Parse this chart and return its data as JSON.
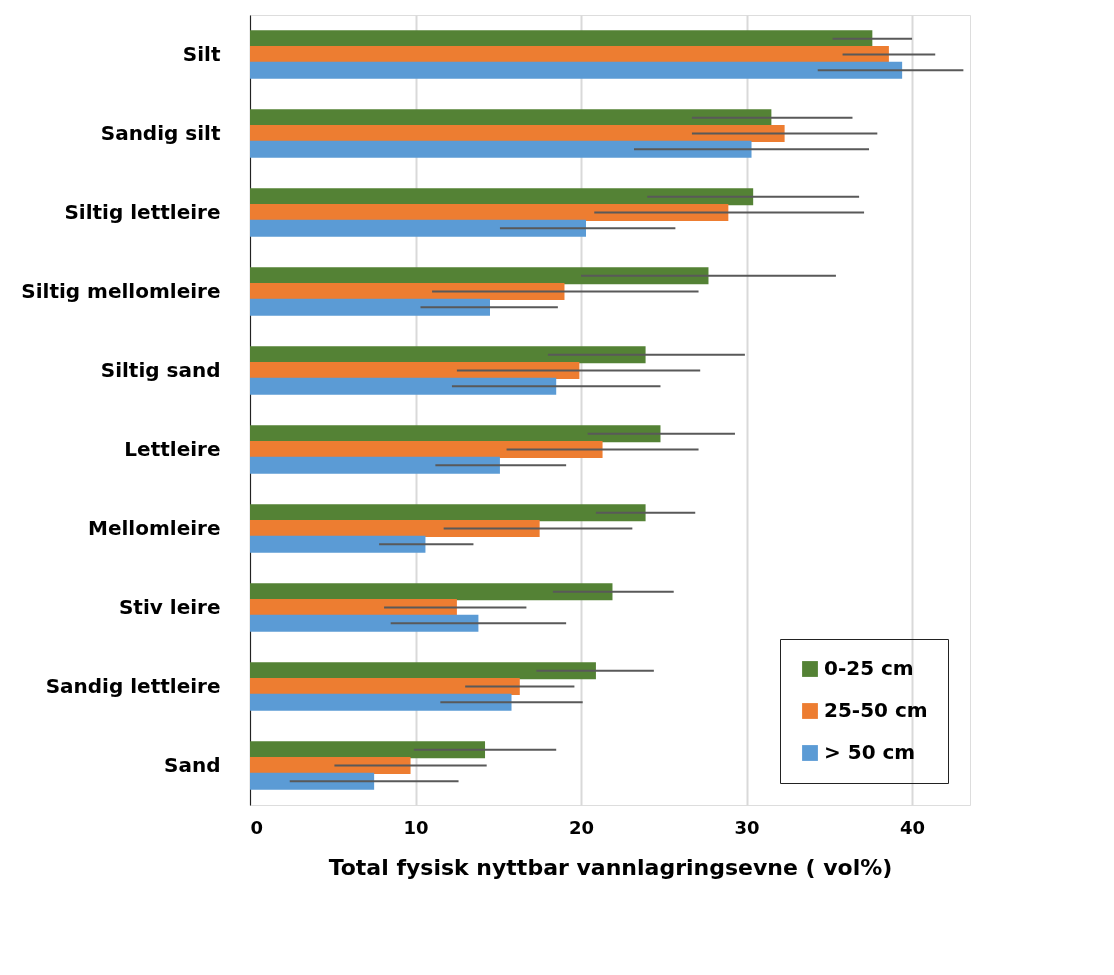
{
  "chart_data": {
    "type": "bar",
    "orientation": "horizontal",
    "xlabel": "Total fysisk nyttbar vannlagringsevne ( vol%)",
    "categories": [
      "Silt",
      "Sandig silt",
      "Siltig lettleire",
      "Siltig mellomleire",
      "Siltig sand",
      "Lettleire",
      "Mellomleire",
      "Stiv leire",
      "Sandig lettleire",
      "Sand"
    ],
    "series": [
      {
        "name": "0-25 cm",
        "color": "#548235",
        "values": [
          37.6,
          31.5,
          30.4,
          27.7,
          23.9,
          24.8,
          23.9,
          21.9,
          20.9,
          14.2
        ],
        "errors": [
          [
            35.2,
            40.0
          ],
          [
            26.7,
            36.4
          ],
          [
            24.0,
            36.8
          ],
          [
            20.0,
            35.4
          ],
          [
            18.0,
            29.9
          ],
          [
            20.4,
            29.3
          ],
          [
            20.9,
            26.9
          ],
          [
            18.3,
            25.6
          ],
          [
            17.3,
            24.4
          ],
          [
            9.9,
            18.5
          ]
        ]
      },
      {
        "name": "25-50 cm",
        "color": "#ed7d31",
        "values": [
          38.6,
          32.3,
          28.9,
          19.0,
          19.9,
          21.3,
          17.5,
          12.5,
          16.3,
          9.7
        ],
        "errors": [
          [
            35.8,
            41.4
          ],
          [
            26.7,
            37.9
          ],
          [
            20.8,
            37.1
          ],
          [
            11.0,
            27.1
          ],
          [
            12.5,
            27.2
          ],
          [
            15.5,
            27.1
          ],
          [
            11.7,
            23.1
          ],
          [
            8.1,
            16.7
          ],
          [
            13.0,
            19.6
          ],
          [
            5.1,
            14.3
          ]
        ]
      },
      {
        "name": "> 50 cm",
        "color": "#5b9bd5",
        "values": [
          39.4,
          30.3,
          20.3,
          14.5,
          18.5,
          15.1,
          10.6,
          13.8,
          15.8,
          7.5
        ],
        "errors": [
          [
            34.3,
            43.1
          ],
          [
            23.2,
            37.4
          ],
          [
            15.1,
            25.7
          ],
          [
            10.3,
            18.6
          ],
          [
            12.2,
            24.8
          ],
          [
            11.2,
            19.1
          ],
          [
            7.8,
            13.5
          ],
          [
            8.5,
            19.1
          ],
          [
            11.5,
            20.1
          ],
          [
            2.4,
            12.6
          ]
        ]
      }
    ],
    "xlim": [
      0,
      43.5
    ],
    "xticks": [
      0,
      10,
      20,
      30,
      40
    ],
    "grid": "x",
    "legend": "bottom right"
  }
}
